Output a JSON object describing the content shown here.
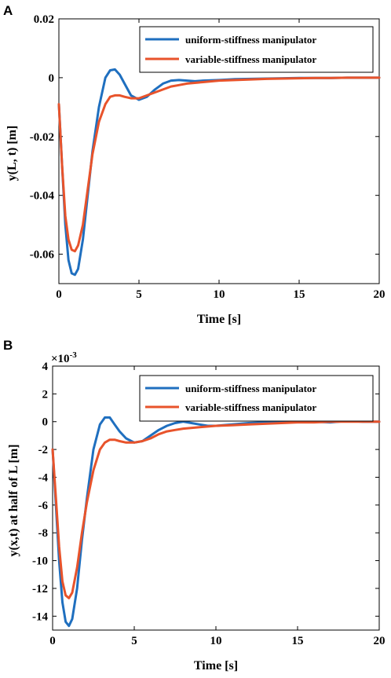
{
  "panels": [
    {
      "label": "A"
    },
    {
      "label": "B"
    }
  ],
  "colors": {
    "uniform": "#1f6fbf",
    "variable": "#e8532b"
  },
  "chart_data": [
    {
      "type": "line",
      "panel": "A",
      "xlabel": "Time [s]",
      "ylabel": "y(L, t) [m]",
      "exponent_label": "",
      "xlim": [
        0,
        20
      ],
      "ylim": [
        -0.07,
        0.02
      ],
      "xticks": [
        0,
        5,
        10,
        15,
        20
      ],
      "xtick_labels": [
        "0",
        "5",
        "10",
        "15",
        "20"
      ],
      "yticks": [
        -0.06,
        -0.04,
        -0.02,
        0,
        0.02
      ],
      "ytick_labels": [
        "-0.06",
        "-0.04",
        "-0.02",
        "0",
        "0.02"
      ],
      "legend_position": "top-right",
      "grid": false,
      "series": [
        {
          "name": "uniform-stiffness manipulator",
          "color": "#1f6fbf",
          "x": [
            0,
            0.2,
            0.4,
            0.6,
            0.8,
            1.0,
            1.2,
            1.5,
            1.8,
            2.1,
            2.5,
            2.9,
            3.2,
            3.5,
            3.8,
            4.1,
            4.5,
            5.0,
            5.5,
            6.0,
            6.5,
            7.0,
            7.5,
            8.0,
            8.5,
            9.0,
            10,
            11,
            12,
            13,
            14,
            15,
            16,
            17,
            18,
            19,
            20
          ],
          "y": [
            -0.009,
            -0.03,
            -0.05,
            -0.062,
            -0.0665,
            -0.067,
            -0.065,
            -0.055,
            -0.04,
            -0.025,
            -0.01,
            0.0,
            0.0025,
            0.0028,
            0.001,
            -0.002,
            -0.006,
            -0.0075,
            -0.0065,
            -0.004,
            -0.002,
            -0.001,
            -0.0008,
            -0.001,
            -0.0012,
            -0.001,
            -0.0008,
            -0.0005,
            -0.0004,
            -0.0003,
            -0.0002,
            -0.0001,
            -0.0001,
            -0.0001,
            0.0,
            0.0,
            0.0
          ]
        },
        {
          "name": "variable-stiffness manipulator",
          "color": "#e8532b",
          "x": [
            0,
            0.2,
            0.4,
            0.6,
            0.8,
            1.0,
            1.2,
            1.5,
            1.8,
            2.1,
            2.5,
            2.9,
            3.2,
            3.5,
            3.8,
            4.1,
            4.5,
            5.0,
            5.5,
            6.0,
            6.5,
            7.0,
            7.5,
            8.0,
            9.0,
            10,
            11,
            12,
            13,
            14,
            15,
            16,
            17,
            18,
            19,
            20
          ],
          "y": [
            -0.009,
            -0.03,
            -0.047,
            -0.055,
            -0.0585,
            -0.059,
            -0.057,
            -0.05,
            -0.038,
            -0.026,
            -0.015,
            -0.009,
            -0.0065,
            -0.006,
            -0.006,
            -0.0065,
            -0.007,
            -0.007,
            -0.006,
            -0.005,
            -0.004,
            -0.003,
            -0.0025,
            -0.002,
            -0.0015,
            -0.001,
            -0.0008,
            -0.0006,
            -0.0004,
            -0.0003,
            -0.0002,
            -0.0001,
            -0.0001,
            0.0,
            0.0,
            0.0
          ]
        }
      ]
    },
    {
      "type": "line",
      "panel": "B",
      "xlabel": "Time [s]",
      "ylabel": "y(x,t) at half of L [m]",
      "exponent_label": "×10",
      "exponent_power": "-3",
      "xlim": [
        0,
        20
      ],
      "ylim": [
        -15,
        4
      ],
      "xticks": [
        0,
        5,
        10,
        15,
        20
      ],
      "xtick_labels": [
        "0",
        "5",
        "10",
        "15",
        "20"
      ],
      "yticks": [
        -14,
        -12,
        -10,
        -8,
        -6,
        -4,
        -2,
        0,
        2,
        4
      ],
      "ytick_labels": [
        "-14",
        "-12",
        "-10",
        "-8",
        "-6",
        "-4",
        "-2",
        "0",
        "2",
        "4"
      ],
      "legend_position": "top-right",
      "grid": false,
      "series": [
        {
          "name": "uniform-stiffness manipulator",
          "color": "#1f6fbf",
          "x": [
            0,
            0.2,
            0.4,
            0.6,
            0.8,
            1.0,
            1.2,
            1.5,
            1.8,
            2.1,
            2.5,
            2.9,
            3.2,
            3.5,
            3.8,
            4.1,
            4.5,
            5.0,
            5.5,
            6.0,
            6.5,
            7.0,
            7.5,
            8.0,
            8.5,
            9.0,
            9.5,
            10,
            11,
            12,
            13,
            14,
            15,
            16,
            17,
            18,
            19,
            20
          ],
          "y": [
            -2.0,
            -6.0,
            -10.0,
            -13.0,
            -14.4,
            -14.7,
            -14.2,
            -12.0,
            -8.5,
            -5.5,
            -2.0,
            -0.2,
            0.3,
            0.3,
            -0.2,
            -0.7,
            -1.2,
            -1.5,
            -1.4,
            -1.0,
            -0.6,
            -0.3,
            -0.1,
            0.0,
            -0.1,
            -0.2,
            -0.3,
            -0.3,
            -0.2,
            -0.1,
            -0.05,
            0.0,
            0.05,
            0.0,
            -0.05,
            0.05,
            0.0,
            0.0
          ]
        },
        {
          "name": "variable-stiffness manipulator",
          "color": "#e8532b",
          "x": [
            0,
            0.2,
            0.4,
            0.6,
            0.8,
            1.0,
            1.2,
            1.5,
            1.8,
            2.1,
            2.5,
            2.9,
            3.2,
            3.5,
            3.8,
            4.1,
            4.5,
            5.0,
            5.5,
            6.0,
            6.5,
            7.0,
            7.5,
            8.0,
            9.0,
            10,
            11,
            12,
            13,
            14,
            15,
            16,
            17,
            18,
            19,
            20
          ],
          "y": [
            -2.0,
            -5.5,
            -9.0,
            -11.5,
            -12.5,
            -12.7,
            -12.3,
            -10.5,
            -8.0,
            -5.8,
            -3.5,
            -2.0,
            -1.5,
            -1.3,
            -1.3,
            -1.4,
            -1.5,
            -1.5,
            -1.4,
            -1.2,
            -0.9,
            -0.7,
            -0.6,
            -0.5,
            -0.4,
            -0.3,
            -0.25,
            -0.2,
            -0.15,
            -0.1,
            -0.05,
            -0.05,
            0.0,
            0.0,
            0.0,
            0.0
          ]
        }
      ]
    }
  ]
}
